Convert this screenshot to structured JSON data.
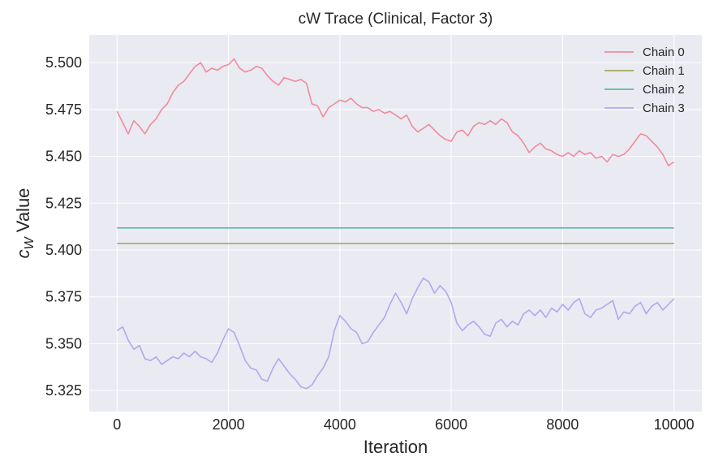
{
  "chart_data": {
    "type": "line",
    "title": "cW Trace (Clinical, Factor 3)",
    "xlabel": "Iteration",
    "ylabel": "c_W Value",
    "xlim": [
      -500,
      10500
    ],
    "ylim": [
      5.3138,
      5.5148
    ],
    "xticks": [
      0,
      2000,
      4000,
      6000,
      8000,
      10000
    ],
    "xtick_labels": [
      "0",
      "2000",
      "4000",
      "6000",
      "8000",
      "10000"
    ],
    "yticks": [
      5.325,
      5.35,
      5.375,
      5.4,
      5.425,
      5.45,
      5.475,
      5.5
    ],
    "ytick_labels": [
      "5.325",
      "5.350",
      "5.375",
      "5.400",
      "5.425",
      "5.450",
      "5.475",
      "5.500"
    ],
    "grid": true,
    "legend_position": "top-right",
    "colors": {
      "background": "#eaeaf2",
      "grid": "#ffffff"
    },
    "series": [
      {
        "name": "Chain 0",
        "color": "#f08b9c",
        "x": [
          0,
          100,
          200,
          300,
          400,
          500,
          600,
          700,
          800,
          900,
          1000,
          1100,
          1200,
          1300,
          1400,
          1500,
          1600,
          1700,
          1800,
          1900,
          2000,
          2100,
          2200,
          2300,
          2400,
          2500,
          2600,
          2700,
          2800,
          2900,
          3000,
          3100,
          3200,
          3300,
          3400,
          3500,
          3600,
          3700,
          3800,
          3900,
          4000,
          4100,
          4200,
          4300,
          4400,
          4500,
          4600,
          4700,
          4800,
          4900,
          5000,
          5100,
          5200,
          5300,
          5400,
          5500,
          5600,
          5700,
          5800,
          5900,
          6000,
          6100,
          6200,
          6300,
          6400,
          6500,
          6600,
          6700,
          6800,
          6900,
          7000,
          7100,
          7200,
          7300,
          7400,
          7500,
          7600,
          7700,
          7800,
          7900,
          8000,
          8100,
          8200,
          8300,
          8400,
          8500,
          8600,
          8700,
          8800,
          8900,
          9000,
          9100,
          9200,
          9300,
          9400,
          9500,
          9600,
          9700,
          9800,
          9900,
          10000
        ],
        "values": [
          5.474,
          5.468,
          5.462,
          5.469,
          5.466,
          5.462,
          5.467,
          5.47,
          5.475,
          5.478,
          5.484,
          5.488,
          5.49,
          5.494,
          5.498,
          5.5,
          5.495,
          5.497,
          5.496,
          5.498,
          5.499,
          5.502,
          5.497,
          5.495,
          5.496,
          5.498,
          5.497,
          5.493,
          5.49,
          5.488,
          5.492,
          5.491,
          5.49,
          5.491,
          5.489,
          5.478,
          5.477,
          5.471,
          5.476,
          5.478,
          5.48,
          5.479,
          5.481,
          5.478,
          5.476,
          5.476,
          5.474,
          5.475,
          5.473,
          5.474,
          5.472,
          5.47,
          5.472,
          5.466,
          5.463,
          5.465,
          5.467,
          5.464,
          5.461,
          5.459,
          5.458,
          5.463,
          5.464,
          5.461,
          5.466,
          5.468,
          5.467,
          5.469,
          5.467,
          5.47,
          5.468,
          5.463,
          5.461,
          5.457,
          5.452,
          5.455,
          5.457,
          5.454,
          5.453,
          5.451,
          5.45,
          5.452,
          5.45,
          5.453,
          5.451,
          5.452,
          5.449,
          5.45,
          5.447,
          5.451,
          5.45,
          5.451,
          5.454,
          5.458,
          5.462,
          5.461,
          5.458,
          5.455,
          5.451,
          5.445,
          5.447
        ]
      },
      {
        "name": "Chain 1",
        "color": "#a4a95a",
        "x": [
          0,
          10000
        ],
        "values": [
          5.4035,
          5.4035
        ]
      },
      {
        "name": "Chain 2",
        "color": "#5bb8a9",
        "x": [
          0,
          10000
        ],
        "values": [
          5.4118,
          5.4118
        ]
      },
      {
        "name": "Chain 3",
        "color": "#b4a6f0",
        "x": [
          0,
          100,
          200,
          300,
          400,
          500,
          600,
          700,
          800,
          900,
          1000,
          1100,
          1200,
          1300,
          1400,
          1500,
          1600,
          1700,
          1800,
          1900,
          2000,
          2100,
          2200,
          2300,
          2400,
          2500,
          2600,
          2700,
          2800,
          2900,
          3000,
          3100,
          3200,
          3300,
          3400,
          3500,
          3600,
          3700,
          3800,
          3900,
          4000,
          4100,
          4200,
          4300,
          4400,
          4500,
          4600,
          4700,
          4800,
          4900,
          5000,
          5100,
          5200,
          5300,
          5400,
          5500,
          5600,
          5700,
          5800,
          5900,
          6000,
          6100,
          6200,
          6300,
          6400,
          6500,
          6600,
          6700,
          6800,
          6900,
          7000,
          7100,
          7200,
          7300,
          7400,
          7500,
          7600,
          7700,
          7800,
          7900,
          8000,
          8100,
          8200,
          8300,
          8400,
          8500,
          8600,
          8700,
          8800,
          8900,
          9000,
          9100,
          9200,
          9300,
          9400,
          9500,
          9600,
          9700,
          9800,
          9900,
          10000
        ],
        "values": [
          5.357,
          5.359,
          5.352,
          5.347,
          5.349,
          5.342,
          5.341,
          5.343,
          5.339,
          5.341,
          5.343,
          5.342,
          5.345,
          5.343,
          5.346,
          5.343,
          5.342,
          5.34,
          5.345,
          5.352,
          5.358,
          5.356,
          5.349,
          5.341,
          5.337,
          5.336,
          5.331,
          5.33,
          5.337,
          5.342,
          5.338,
          5.334,
          5.331,
          5.327,
          5.326,
          5.328,
          5.333,
          5.337,
          5.343,
          5.357,
          5.365,
          5.362,
          5.358,
          5.356,
          5.35,
          5.351,
          5.356,
          5.36,
          5.364,
          5.371,
          5.377,
          5.372,
          5.366,
          5.374,
          5.38,
          5.385,
          5.383,
          5.377,
          5.381,
          5.378,
          5.372,
          5.361,
          5.357,
          5.36,
          5.362,
          5.359,
          5.355,
          5.354,
          5.361,
          5.363,
          5.359,
          5.362,
          5.36,
          5.366,
          5.368,
          5.365,
          5.368,
          5.364,
          5.369,
          5.367,
          5.371,
          5.368,
          5.372,
          5.374,
          5.366,
          5.364,
          5.368,
          5.369,
          5.371,
          5.373,
          5.363,
          5.367,
          5.366,
          5.37,
          5.372,
          5.366,
          5.37,
          5.372,
          5.368,
          5.371,
          5.374
        ]
      }
    ]
  }
}
